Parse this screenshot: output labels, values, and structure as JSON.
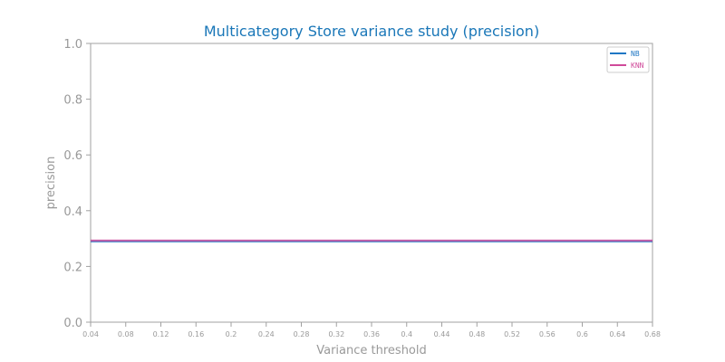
{
  "chart_data": {
    "type": "line",
    "title": "Multicategory Store variance study (precision)",
    "xlabel": "Variance threshold",
    "ylabel": "precision",
    "xlim": [
      0.04,
      0.68
    ],
    "ylim": [
      0.0,
      1.0
    ],
    "x_ticks": [
      "0.04",
      "0.08",
      "0.12",
      "0.16",
      "0.2",
      "0.24",
      "0.28",
      "0.32",
      "0.36",
      "0.4",
      "0.44",
      "0.48",
      "0.52",
      "0.56",
      "0.6",
      "0.64",
      "0.68"
    ],
    "y_ticks": [
      "0.0",
      "0.2",
      "0.4",
      "0.6",
      "0.8",
      "1.0"
    ],
    "grid": false,
    "legend_position": "top-right",
    "x": [
      0.04,
      0.08,
      0.12,
      0.16,
      0.2,
      0.24,
      0.28,
      0.32,
      0.36,
      0.4,
      0.44,
      0.48,
      0.52,
      0.56,
      0.6,
      0.64,
      0.68
    ],
    "series": [
      {
        "name": "NB",
        "color": "#1f77c4",
        "values": [
          0.29,
          0.29,
          0.29,
          0.29,
          0.29,
          0.29,
          0.29,
          0.29,
          0.29,
          0.29,
          0.29,
          0.29,
          0.29,
          0.29,
          0.29,
          0.29,
          0.29
        ]
      },
      {
        "name": "KNN",
        "color": "#d04a9a",
        "values": [
          0.293,
          0.293,
          0.293,
          0.293,
          0.293,
          0.293,
          0.293,
          0.293,
          0.293,
          0.293,
          0.293,
          0.293,
          0.293,
          0.293,
          0.293,
          0.293,
          0.293
        ]
      }
    ],
    "colors": {
      "title": "#1a77b8",
      "axis_text": "#999999",
      "axis_line": "#a0a0a0"
    }
  }
}
